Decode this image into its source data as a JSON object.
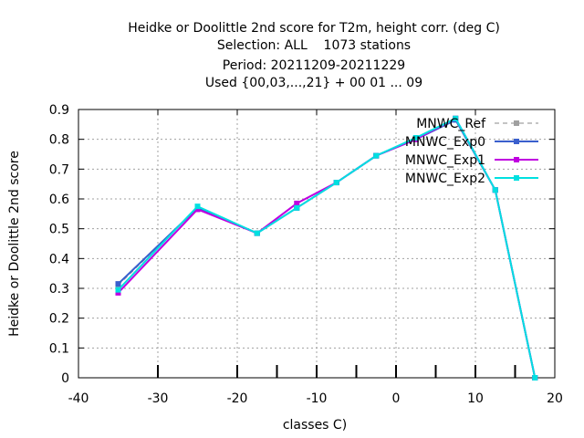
{
  "chart_data": {
    "type": "line",
    "title_lines": [
      "Heidke or Doolittle 2nd score  for T2m, height corr. (deg C)",
      "Selection: ALL    1073 stations",
      "Period: 20211209-20211229",
      "Used {00,03,...,21} + 00 01 ... 09"
    ],
    "xlabel": "classes C)",
    "ylabel": "Heidke or Doolittle 2nd score",
    "xlim": [
      -40,
      20
    ],
    "ylim": [
      0,
      0.9
    ],
    "xticks": [
      -40,
      -30,
      -20,
      -10,
      0,
      10,
      20
    ],
    "yticks": [
      0,
      0.1,
      0.2,
      0.3,
      0.4,
      0.5,
      0.6,
      0.7,
      0.8,
      0.9
    ],
    "class_markers": [
      -30,
      -20,
      -15,
      -10,
      -5,
      0,
      5,
      10,
      15
    ],
    "grid": true,
    "legend_position": "top-right",
    "x": [
      -35,
      -25,
      -17.5,
      -12.5,
      -7.5,
      -2.5,
      2.5,
      7.5,
      12.5,
      17.5
    ],
    "series": [
      {
        "name": "MNWC_Ref",
        "color": "#a0a0a0",
        "dashed": true,
        "values": [
          0.31,
          0.57,
          0.485,
          0.57,
          0.655,
          0.745,
          0.8,
          0.87,
          0.63,
          0.0
        ]
      },
      {
        "name": "MNWC_Exp0",
        "color": "#3a5fcd",
        "dashed": false,
        "values": [
          0.315,
          0.57,
          0.485,
          0.57,
          0.655,
          0.745,
          0.8,
          0.865,
          0.63,
          0.0
        ]
      },
      {
        "name": "MNWC_Exp1",
        "color": "#c000e0",
        "dashed": false,
        "values": [
          0.285,
          0.565,
          0.485,
          0.585,
          0.655,
          0.745,
          0.8,
          0.87,
          0.63,
          0.0
        ]
      },
      {
        "name": "MNWC_Exp2",
        "color": "#00e0e0",
        "dashed": false,
        "values": [
          0.295,
          0.575,
          0.485,
          0.57,
          0.655,
          0.745,
          0.805,
          0.87,
          0.63,
          0.0
        ]
      }
    ]
  }
}
